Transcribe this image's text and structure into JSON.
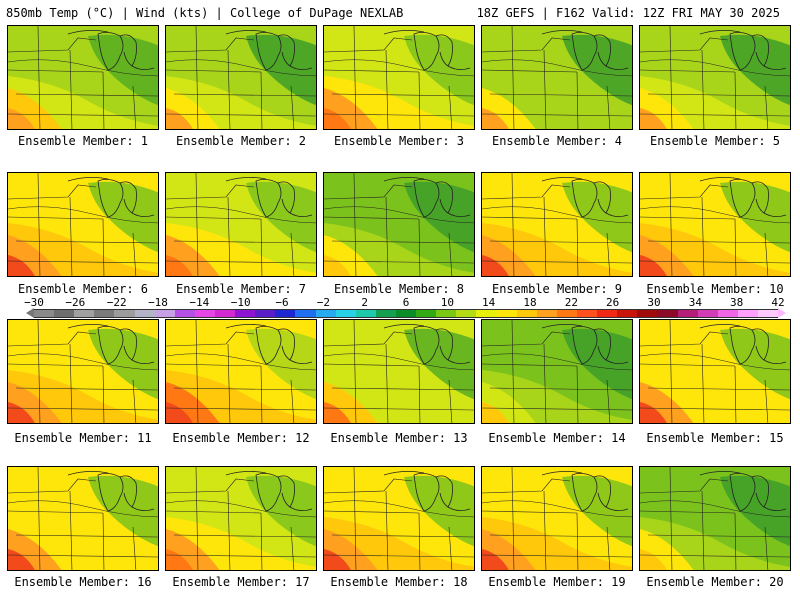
{
  "header": {
    "left": "850mb Temp (°C) | Wind (kts) | College of DuPage NEXLAB",
    "right": "18Z GEFS | F162 Valid: 12Z FRI MAY 30 2025"
  },
  "panels": [
    {
      "label": "Ensemble Member: 1",
      "warmth": 0.35
    },
    {
      "label": "Ensemble Member: 2",
      "warmth": 0.3
    },
    {
      "label": "Ensemble Member: 3",
      "warmth": 0.45
    },
    {
      "label": "Ensemble Member: 4",
      "warmth": 0.28
    },
    {
      "label": "Ensemble Member: 5",
      "warmth": 0.3
    },
    {
      "label": "Ensemble Member: 6",
      "warmth": 0.55
    },
    {
      "label": "Ensemble Member: 7",
      "warmth": 0.45
    },
    {
      "label": "Ensemble Member: 8",
      "warmth": 0.25
    },
    {
      "label": "Ensemble Member: 9",
      "warmth": 0.55
    },
    {
      "label": "Ensemble Member: 10",
      "warmth": 0.55
    },
    {
      "label": "Ensemble Member: 11",
      "warmth": 0.55
    },
    {
      "label": "Ensemble Member: 12",
      "warmth": 0.6
    },
    {
      "label": "Ensemble Member: 13",
      "warmth": 0.4
    },
    {
      "label": "Ensemble Member: 14",
      "warmth": 0.2
    },
    {
      "label": "Ensemble Member: 15",
      "warmth": 0.5
    },
    {
      "label": "Ensemble Member: 16",
      "warmth": 0.5
    },
    {
      "label": "Ensemble Member: 17",
      "warmth": 0.45
    },
    {
      "label": "Ensemble Member: 18",
      "warmth": 0.55
    },
    {
      "label": "Ensemble Member: 19",
      "warmth": 0.55
    },
    {
      "label": "Ensemble Member: 20",
      "warmth": 0.25
    }
  ],
  "colorbar": {
    "ticks": [
      "-30",
      "-26",
      "-22",
      "-18",
      "-14",
      "-10",
      "-6",
      "-2",
      "2",
      "6",
      "10",
      "14",
      "18",
      "22",
      "26",
      "30",
      "34",
      "38",
      "42"
    ],
    "colors": [
      "#8a8a8a",
      "#6e6e6e",
      "#a0a0a0",
      "#7a7a7a",
      "#9c9c9c",
      "#b4b4c8",
      "#c8a0e6",
      "#b450e6",
      "#e646e6",
      "#d228d2",
      "#8c14d2",
      "#5a1ec8",
      "#1e28d2",
      "#1e6ef0",
      "#28aaf0",
      "#28d2e6",
      "#1ec8aa",
      "#14a050",
      "#0a8c28",
      "#32aa14",
      "#78c814",
      "#b4dc14",
      "#e6f00a",
      "#ffe60a",
      "#ffc80a",
      "#ffa01e",
      "#ff7814",
      "#ff501e",
      "#f02814",
      "#c8140a",
      "#a00a0a",
      "#8c0a28",
      "#b41e78",
      "#d23cb4",
      "#f064e6",
      "#ffa0ff",
      "#ffc8ff"
    ]
  }
}
